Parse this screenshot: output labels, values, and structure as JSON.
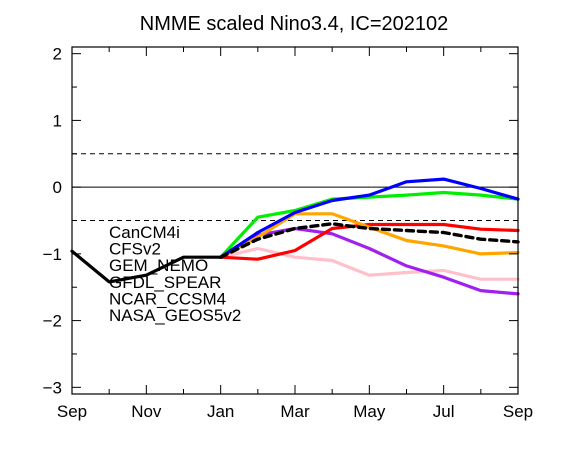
{
  "chart_data": {
    "type": "line",
    "title": "NMME scaled Nino3.4, IC=202102",
    "xlabel": "",
    "ylabel": "",
    "ylim": [
      -3.1,
      2.1
    ],
    "xlim": [
      0,
      12
    ],
    "x_ticks": [
      0,
      2,
      4,
      6,
      8,
      10,
      12
    ],
    "x_tick_labels": [
      "Sep",
      "Nov",
      "Jan",
      "Mar",
      "May",
      "Jul",
      "Sep"
    ],
    "y_ticks": [
      2,
      1,
      0,
      -1,
      -2,
      -3
    ],
    "y_tick_labels": [
      "2",
      "1",
      "0",
      "−1",
      "−2",
      "−3"
    ],
    "x_minor_ticks": [
      1,
      3,
      5,
      7,
      9,
      11
    ],
    "y_minor_ticks": [
      1.5,
      0.5,
      -0.5,
      -1.5,
      -2.5
    ],
    "reference_lines": [
      {
        "y": 0.5,
        "style": "dashed"
      },
      {
        "y": 0,
        "style": "solid"
      },
      {
        "y": -0.5,
        "style": "dashed"
      }
    ],
    "observed": {
      "x": [
        0,
        1,
        2,
        3,
        4
      ],
      "values": [
        -0.96,
        -1.42,
        -1.32,
        -1.05,
        -1.05
      ],
      "color": "#000000"
    },
    "series": [
      {
        "name": "CanCM4i",
        "color": "#0000ff",
        "x": [
          4,
          5,
          6,
          7,
          8,
          9,
          10,
          11,
          12
        ],
        "values": [
          -1.05,
          -0.68,
          -0.38,
          -0.2,
          -0.12,
          0.08,
          0.12,
          -0.02,
          -0.18
        ]
      },
      {
        "name": "CFSv2",
        "color": "#ffa500",
        "x": [
          4,
          5,
          6,
          7,
          8,
          9,
          10,
          11,
          12
        ],
        "values": [
          -1.05,
          -0.75,
          -0.4,
          -0.4,
          -0.6,
          -0.8,
          -0.88,
          -1.0,
          -0.98
        ]
      },
      {
        "name": "GEM_NEMO",
        "color": "#ff0000",
        "x": [
          4,
          5,
          6,
          7,
          8,
          9,
          10,
          11,
          12
        ],
        "values": [
          -1.05,
          -1.08,
          -0.95,
          -0.62,
          -0.56,
          -0.56,
          -0.56,
          -0.63,
          -0.65
        ]
      },
      {
        "name": "GFDL_SPEAR",
        "color": "#00ee00",
        "x": [
          4,
          5,
          6,
          7,
          8,
          9,
          10,
          11,
          12
        ],
        "values": [
          -1.05,
          -0.45,
          -0.35,
          -0.18,
          -0.15,
          -0.12,
          -0.08,
          -0.12,
          -0.18
        ]
      },
      {
        "name": "NCAR_CCSM4",
        "color": "#a020f0",
        "x": [
          4,
          5,
          6,
          7,
          8,
          9,
          10,
          11,
          12
        ],
        "values": [
          -1.05,
          -0.72,
          -0.62,
          -0.7,
          -0.92,
          -1.18,
          -1.35,
          -1.55,
          -1.6
        ]
      },
      {
        "name": "NASA_GEOS5v2",
        "color": "#ffc0cb",
        "x": [
          4,
          5,
          6,
          7,
          8,
          9,
          10,
          11,
          12
        ],
        "values": [
          -1.05,
          -0.92,
          -1.05,
          -1.1,
          -1.32,
          -1.28,
          -1.25,
          -1.38,
          -1.38
        ]
      },
      {
        "color": "#000000",
        "style": "dashed",
        "x": [
          4,
          5,
          6,
          7,
          8,
          9,
          10,
          11,
          12
        ],
        "values": [
          -1.05,
          -0.78,
          -0.62,
          -0.55,
          -0.62,
          -0.65,
          -0.68,
          -0.78,
          -0.82
        ]
      }
    ],
    "legend_entries": [
      "CanCM4i",
      "CFSv2",
      "GEM_NEMO",
      "GFDL_SPEAR",
      "NCAR_CCSM4",
      "NASA_GEOS5v2"
    ],
    "legend_colors": [
      "#0000ff",
      "#ffa500",
      "#ff0000",
      "#00ee00",
      "#a020f0",
      "#ffc0cb"
    ],
    "legend_placement": "lower-left",
    "grid": false
  }
}
